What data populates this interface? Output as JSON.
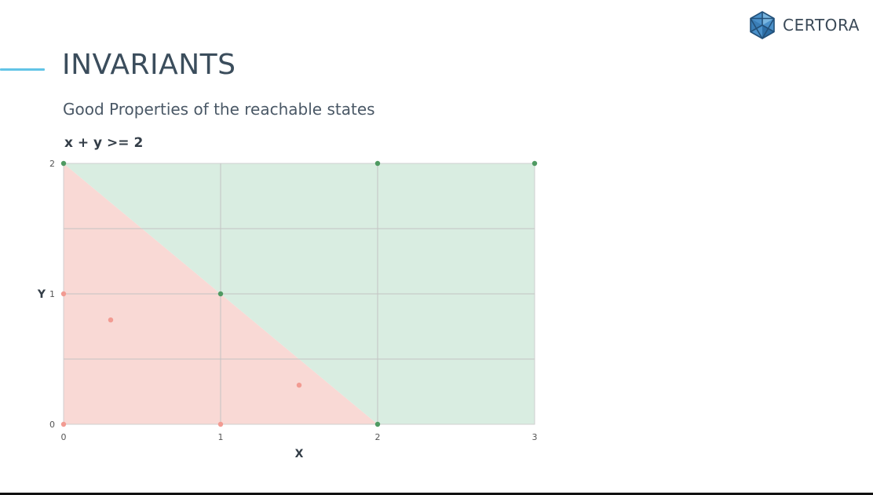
{
  "slide": {
    "title": "INVARIANTS",
    "subtitle": "Good Properties of the reachable states"
  },
  "brand": {
    "name": "CERTORA",
    "logo_icon": "certora-hexagon-logo-icon",
    "colors": {
      "logo": "#4a90c9",
      "logo_dark": "#23517a"
    }
  },
  "chart_data": {
    "type": "scatter",
    "title": "x + y >= 2",
    "xlabel": "X",
    "ylabel": "Y",
    "xlim": [
      0,
      3
    ],
    "ylim": [
      0,
      2
    ],
    "x_ticks": [
      "0",
      "1",
      "2",
      "3"
    ],
    "y_ticks": [
      "0",
      "1",
      "2"
    ],
    "x_gridlines": [
      1,
      2
    ],
    "y_gridlines": [
      0.5,
      1,
      1.5
    ],
    "grid": true,
    "regions": [
      {
        "name": "bad",
        "polygon": [
          [
            0,
            0
          ],
          [
            2,
            0
          ],
          [
            0,
            2
          ]
        ],
        "color": "#f9d9d5"
      },
      {
        "name": "good",
        "polygon": [
          [
            0,
            2
          ],
          [
            2,
            0
          ],
          [
            3,
            0
          ],
          [
            3,
            2
          ]
        ],
        "color": "#d9ede1"
      }
    ],
    "series": [
      {
        "color": "#4f9a62",
        "x": [
          0,
          2,
          3,
          1,
          2
        ],
        "y": [
          2,
          2,
          2,
          1,
          0
        ]
      },
      {
        "color": "#f29b92",
        "x": [
          0,
          0.3,
          1.5,
          0,
          1
        ],
        "y": [
          1,
          0.8,
          0.3,
          0,
          0
        ]
      }
    ]
  }
}
